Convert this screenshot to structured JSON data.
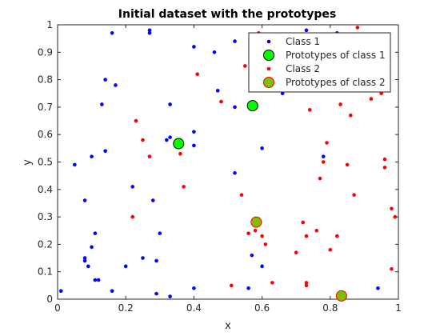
{
  "chart_data": {
    "type": "scatter",
    "title": "Initial dataset with the prototypes",
    "xlabel": "x",
    "ylabel": "y",
    "xlim": [
      0,
      1
    ],
    "ylim": [
      0,
      1
    ],
    "x_ticks": [
      "0",
      "0.2",
      "0.4",
      "0.6",
      "0.8",
      "1"
    ],
    "y_ticks": [
      "0",
      "0.1",
      "0.2",
      "0.3",
      "0.4",
      "0.5",
      "0.6",
      "0.7",
      "0.8",
      "0.9",
      "1"
    ],
    "grid": false,
    "legend_position": "top-right",
    "series": [
      {
        "name": "Class 1",
        "color": "#0000ff",
        "marker": "dot",
        "points": [
          [
            0.01,
            0.03
          ],
          [
            0.05,
            0.49
          ],
          [
            0.08,
            0.36
          ],
          [
            0.08,
            0.15
          ],
          [
            0.08,
            0.14
          ],
          [
            0.09,
            0.12
          ],
          [
            0.1,
            0.52
          ],
          [
            0.1,
            0.19
          ],
          [
            0.11,
            0.07
          ],
          [
            0.11,
            0.24
          ],
          [
            0.12,
            0.07
          ],
          [
            0.13,
            0.71
          ],
          [
            0.14,
            0.54
          ],
          [
            0.14,
            0.8
          ],
          [
            0.16,
            0.97
          ],
          [
            0.16,
            0.03
          ],
          [
            0.17,
            0.78
          ],
          [
            0.2,
            0.12
          ],
          [
            0.22,
            0.41
          ],
          [
            0.25,
            0.15
          ],
          [
            0.27,
            0.98
          ],
          [
            0.27,
            0.97
          ],
          [
            0.28,
            0.36
          ],
          [
            0.29,
            0.14
          ],
          [
            0.29,
            0.02
          ],
          [
            0.3,
            0.24
          ],
          [
            0.32,
            0.58
          ],
          [
            0.33,
            0.59
          ],
          [
            0.33,
            0.71
          ],
          [
            0.33,
            0.01
          ],
          [
            0.4,
            0.92
          ],
          [
            0.4,
            0.56
          ],
          [
            0.4,
            0.61
          ],
          [
            0.4,
            0.04
          ],
          [
            0.46,
            0.9
          ],
          [
            0.47,
            0.76
          ],
          [
            0.52,
            0.94
          ],
          [
            0.52,
            0.46
          ],
          [
            0.57,
            0.16
          ],
          [
            0.57,
            0.91
          ],
          [
            0.59,
            0.8
          ],
          [
            0.6,
            0.55
          ],
          [
            0.6,
            0.12
          ],
          [
            0.66,
            0.75
          ],
          [
            0.73,
            0.98
          ],
          [
            0.78,
            0.52
          ],
          [
            0.82,
            0.97
          ],
          [
            0.94,
            0.04
          ],
          [
            0.56,
            0.04
          ],
          [
            0.52,
            0.7
          ]
        ]
      },
      {
        "name": "Prototypes of class 1",
        "color": "#00ff00",
        "marker": "big-circle",
        "points": [
          [
            0.355,
            0.567
          ],
          [
            0.572,
            0.705
          ]
        ]
      },
      {
        "name": "Class 2",
        "color": "#ff0000",
        "marker": "dot",
        "points": [
          [
            0.22,
            0.3
          ],
          [
            0.23,
            0.65
          ],
          [
            0.25,
            0.58
          ],
          [
            0.27,
            0.52
          ],
          [
            0.36,
            0.53
          ],
          [
            0.37,
            0.41
          ],
          [
            0.41,
            0.82
          ],
          [
            0.48,
            0.72
          ],
          [
            0.51,
            0.05
          ],
          [
            0.54,
            0.38
          ],
          [
            0.55,
            0.85
          ],
          [
            0.56,
            0.24
          ],
          [
            0.58,
            0.25
          ],
          [
            0.6,
            0.23
          ],
          [
            0.61,
            0.2
          ],
          [
            0.63,
            0.06
          ],
          [
            0.7,
            0.17
          ],
          [
            0.72,
            0.28
          ],
          [
            0.73,
            0.23
          ],
          [
            0.73,
            0.06
          ],
          [
            0.73,
            0.05
          ],
          [
            0.74,
            0.69
          ],
          [
            0.76,
            0.25
          ],
          [
            0.77,
            0.44
          ],
          [
            0.78,
            0.5
          ],
          [
            0.79,
            0.57
          ],
          [
            0.8,
            0.18
          ],
          [
            0.82,
            0.23
          ],
          [
            0.83,
            0.71
          ],
          [
            0.85,
            0.49
          ],
          [
            0.86,
            0.67
          ],
          [
            0.87,
            0.38
          ],
          [
            0.88,
            0.99
          ],
          [
            0.92,
            0.73
          ],
          [
            0.95,
            0.75
          ],
          [
            0.96,
            0.51
          ],
          [
            0.96,
            0.48
          ],
          [
            0.98,
            0.33
          ],
          [
            0.98,
            0.11
          ],
          [
            0.99,
            0.3
          ],
          [
            0.59,
            0.97
          ],
          [
            0.71,
            0.86
          ]
        ]
      },
      {
        "name": "Prototypes of class 2",
        "color": "#7fbf00",
        "marker": "big-circle-red-edge",
        "points": [
          [
            0.583,
            0.281
          ],
          [
            0.833,
            0.012
          ]
        ]
      }
    ]
  }
}
